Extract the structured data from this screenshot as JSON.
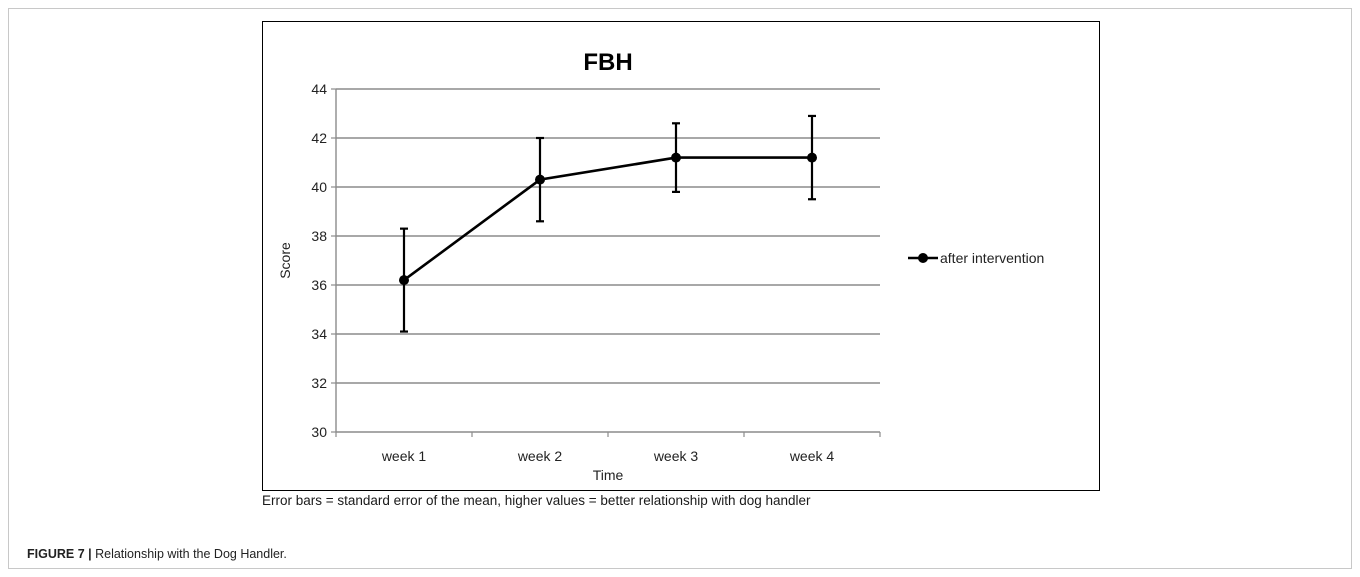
{
  "chart_data": {
    "type": "line",
    "title": "FBH",
    "xlabel": "Time",
    "ylabel": "Score",
    "categories": [
      "week 1",
      "week 2",
      "week 3",
      "week 4"
    ],
    "ylim": [
      30,
      44
    ],
    "yticks": [
      30,
      32,
      34,
      36,
      38,
      40,
      42,
      44
    ],
    "grid": true,
    "legend_position": "right",
    "series": [
      {
        "name": "after intervention",
        "values": [
          36.2,
          40.3,
          41.2,
          41.2
        ],
        "error": [
          2.1,
          1.7,
          1.4,
          1.7
        ],
        "color": "#000000"
      }
    ]
  },
  "note": "Error bars = standard error of the mean, higher values = better relationship with dog handler",
  "caption": {
    "label": "FIGURE 7 |",
    "text": " Relationship with the Dog Handler."
  }
}
